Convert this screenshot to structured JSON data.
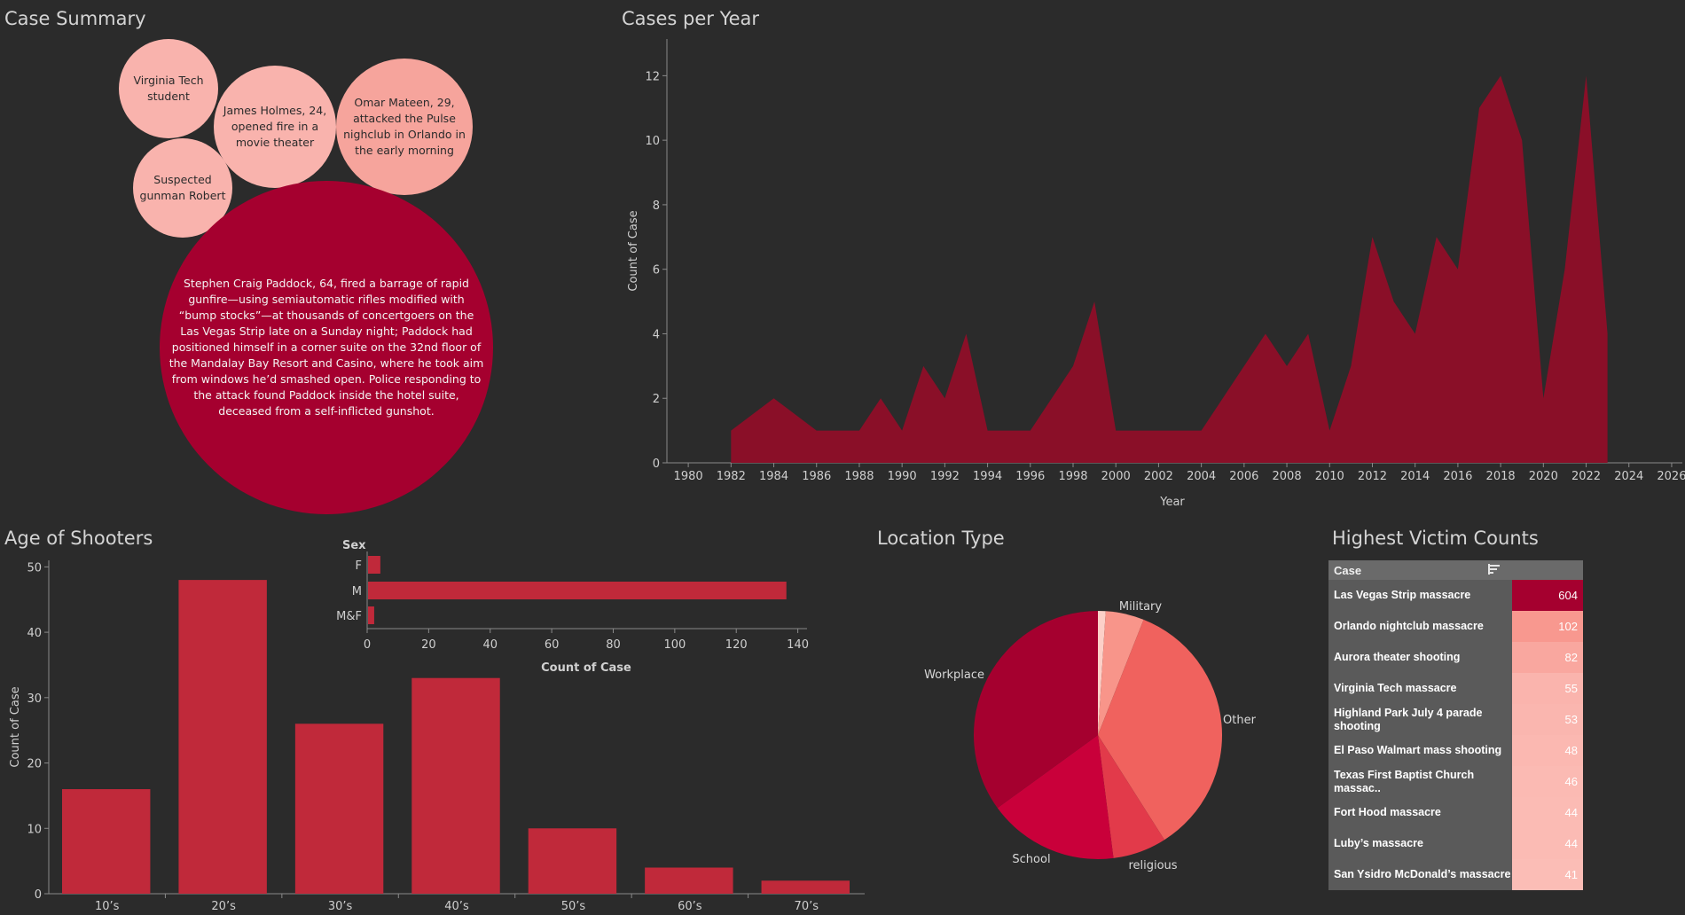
{
  "titles": {
    "case_summary": "Case Summary",
    "cases_per_year": "Cases per Year",
    "age_of_shooters": "Age of Shooters",
    "location_type": "Location Type",
    "highest_victim_counts": "Highest Victim Counts"
  },
  "colors": {
    "background": "#2b2b2b",
    "dark_red": "#a5002f",
    "bar_red": "#c0293a",
    "area_red": "#8a0f28",
    "light_pink": "#f9b3ad",
    "salmon": "#f6a49c"
  },
  "case_summary": {
    "bubbles": [
      {
        "lines": [
          "Virginia Tech",
          "student"
        ]
      },
      {
        "lines": [
          "James Holmes, 24,",
          "opened fire in a",
          "movie theater"
        ]
      },
      {
        "lines": [
          "Omar Mateen, 29,",
          "attacked the Pulse",
          "nighclub in Orlando in",
          "the early morning"
        ]
      },
      {
        "lines": [
          "Suspected",
          "gunman Robert"
        ]
      },
      {
        "lines": [
          "Stephen Craig Paddock, 64, fired a barrage of rapid",
          "gunfire—using semiautomatic rifles modified with",
          "“bump stocks”—at thousands of concertgoers on the",
          "Las Vegas Strip late on a Sunday night; Paddock had",
          "positioned himself in a corner suite on the 32nd floor of",
          "the Mandalay Bay Resort and Casino, where he took aim",
          "from windows he’d smashed open. Police responding to",
          "the attack found Paddock inside the hotel suite,",
          "deceased from a self-inflicted gunshot."
        ]
      }
    ]
  },
  "chart_data": [
    {
      "type": "area",
      "title": "Cases per Year",
      "xlabel": "Year",
      "ylabel": "Count of Case",
      "x_ticks": [
        "1980",
        "1982",
        "1984",
        "1986",
        "1988",
        "1990",
        "1992",
        "1994",
        "1996",
        "1998",
        "2000",
        "2002",
        "2004",
        "2006",
        "2008",
        "2010",
        "2012",
        "2014",
        "2016",
        "2018",
        "2020",
        "2022",
        "2024",
        "2026"
      ],
      "y_ticks": [
        "0",
        "2",
        "4",
        "6",
        "8",
        "10",
        "12"
      ],
      "ylim": [
        0,
        13
      ],
      "xlim": [
        1979,
        2026.5
      ],
      "x": [
        1982,
        1984,
        1986,
        1987,
        1988,
        1989,
        1990,
        1991,
        1992,
        1993,
        1994,
        1995,
        1996,
        1997,
        1998,
        1999,
        2000,
        2001,
        2002,
        2003,
        2004,
        2005,
        2006,
        2007,
        2008,
        2009,
        2010,
        2011,
        2012,
        2013,
        2014,
        2015,
        2016,
        2017,
        2018,
        2019,
        2020,
        2021,
        2022,
        2023
      ],
      "values": [
        1,
        2,
        1,
        1,
        1,
        2,
        1,
        3,
        2,
        4,
        1,
        1,
        1,
        2,
        3,
        5,
        1,
        1,
        1,
        1,
        1,
        2,
        3,
        4,
        3,
        4,
        1,
        3,
        7,
        5,
        4,
        7,
        6,
        11,
        12,
        10,
        2,
        6,
        12,
        4
      ]
    },
    {
      "type": "bar",
      "title": "Age of Shooters",
      "ylabel": "Count of Case",
      "categories": [
        "10’s",
        "20’s",
        "30’s",
        "40’s",
        "50’s",
        "60’s",
        "70’s"
      ],
      "values": [
        16,
        48,
        26,
        33,
        10,
        4,
        2
      ],
      "y_ticks": [
        "0",
        "10",
        "20",
        "30",
        "40",
        "50"
      ],
      "ylim": [
        0,
        51
      ]
    },
    {
      "type": "bar",
      "orientation": "horizontal",
      "legend_title": "Sex",
      "xlabel": "Count of Case",
      "categories": [
        "F",
        "M",
        "M&F"
      ],
      "values": [
        4,
        136,
        2
      ],
      "x_ticks": [
        "0",
        "20",
        "40",
        "60",
        "80",
        "100",
        "120",
        "140"
      ],
      "xlim": [
        0,
        143
      ]
    },
    {
      "type": "pie",
      "title": "Location Type",
      "slices": [
        {
          "label": "",
          "value": 1,
          "color": "#fcd0c8"
        },
        {
          "label": "Military",
          "value": 5,
          "color": "#f8958a"
        },
        {
          "label": "Other",
          "value": 35,
          "color": "#f0625e"
        },
        {
          "label": "religious",
          "value": 7,
          "color": "#e23a4a"
        },
        {
          "label": "School",
          "value": 17,
          "color": "#c9003a"
        },
        {
          "label": "Workplace",
          "value": 35,
          "color": "#a5002f"
        }
      ]
    },
    {
      "type": "table",
      "title": "Highest Victim Counts",
      "header": "Case",
      "rows": [
        {
          "case": "Las Vegas Strip massacre",
          "victims": "604",
          "color": "#a5002f"
        },
        {
          "case": "Orlando nightclub massacre",
          "victims": "102",
          "color": "#f8988f"
        },
        {
          "case": "Aurora theater shooting",
          "victims": "82",
          "color": "#f9a79f"
        },
        {
          "case": "Virginia Tech massacre",
          "victims": "55",
          "color": "#fab4ad"
        },
        {
          "case": "Highland Park July 4 parade shooting",
          "victims": "53",
          "color": "#fab6af"
        },
        {
          "case": "El Paso Walmart mass shooting",
          "victims": "48",
          "color": "#fbb8b1"
        },
        {
          "case": "Texas First Baptist Church massac..",
          "victims": "46",
          "color": "#fbbab3"
        },
        {
          "case": "Fort Hood massacre",
          "victims": "44",
          "color": "#fbbbb4"
        },
        {
          "case": "Luby’s massacre",
          "victims": "44",
          "color": "#fbbbb4"
        },
        {
          "case": "San Ysidro McDonald’s massacre",
          "victims": "41",
          "color": "#fbbdb6"
        }
      ]
    }
  ]
}
